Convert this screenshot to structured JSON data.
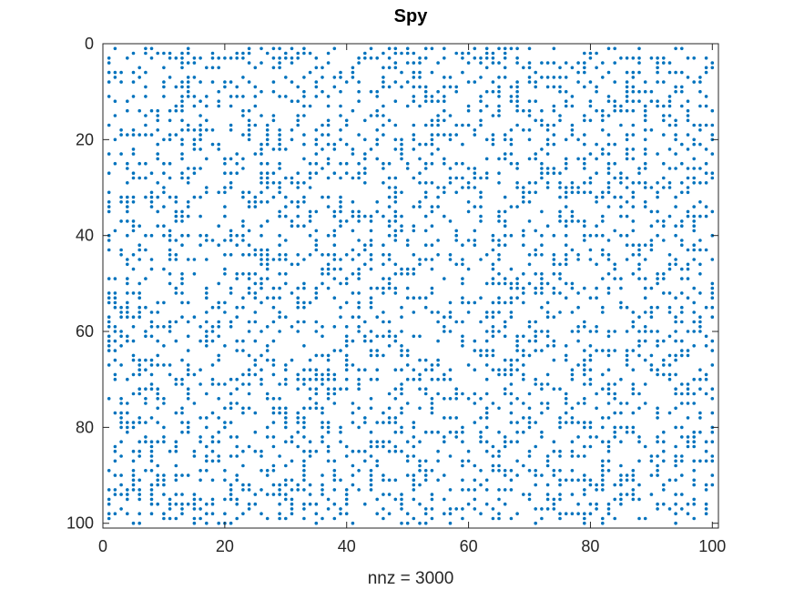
{
  "chart_data": {
    "type": "scatter",
    "title": "Spy",
    "xlabel": "nnz = 3000",
    "ylabel": "",
    "xlim": [
      0,
      101
    ],
    "ylim": [
      0,
      101
    ],
    "y_reversed": true,
    "grid": false,
    "legend": "none",
    "x_ticks": [
      "0",
      "20",
      "40",
      "60",
      "80",
      "100"
    ],
    "y_ticks": [
      "0",
      "20",
      "40",
      "60",
      "80",
      "100"
    ],
    "marker_color": "#0072bd",
    "marker": "dot",
    "matrix_size": [
      100,
      100
    ],
    "nnz": 3000,
    "density": 0.3,
    "series": [
      {
        "x": [],
        "y": []
      }
    ]
  }
}
